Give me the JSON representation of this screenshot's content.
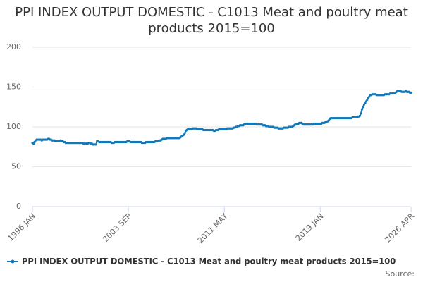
{
  "chart_data": {
    "type": "line",
    "title": "PPI INDEX OUTPUT DOMESTIC - C1013 Meat and poultry meat products 2015=100",
    "source": "Source:",
    "categories": [
      "1996 JAN",
      null,
      null,
      null,
      null,
      null,
      null,
      null,
      null,
      null,
      null,
      null,
      null,
      null,
      null,
      null,
      null,
      null,
      null,
      null,
      null,
      null,
      null,
      null,
      null,
      null,
      null,
      null,
      null,
      null,
      null,
      null,
      null,
      null,
      null,
      null,
      null,
      null,
      null,
      null,
      null,
      null,
      null,
      null,
      null,
      null,
      null,
      null,
      null,
      null,
      null,
      null,
      null,
      null,
      null,
      null,
      null,
      null,
      null,
      null,
      null,
      null,
      null,
      null,
      null,
      null,
      null,
      null,
      null,
      null,
      null,
      null,
      null,
      null,
      null,
      null,
      null,
      null,
      null,
      null,
      null,
      null,
      null,
      null,
      null,
      null,
      null,
      null,
      null,
      null,
      null,
      null,
      "2003 SEP",
      null,
      null,
      null,
      null,
      null,
      null,
      null,
      null,
      null,
      null,
      null,
      null,
      null,
      null,
      null,
      null,
      null,
      null,
      null,
      null,
      null,
      null,
      null,
      null,
      null,
      null,
      null,
      null,
      null,
      null,
      null,
      null,
      null,
      null,
      null,
      null,
      null,
      null,
      null,
      null,
      null,
      null,
      null,
      null,
      null,
      null,
      null,
      null,
      null,
      null,
      null,
      null,
      null,
      null,
      null,
      null,
      null,
      null,
      null,
      null,
      null,
      null,
      null,
      null,
      null,
      null,
      null,
      null,
      null,
      null,
      null,
      null,
      null,
      null,
      null,
      null,
      null,
      null,
      null,
      null,
      null,
      null,
      null,
      null,
      null,
      null,
      null,
      null,
      null,
      null,
      null,
      "2011 MAY",
      null,
      null,
      null,
      null,
      null,
      null,
      null,
      null,
      null,
      null,
      null,
      null,
      null,
      null,
      null,
      null,
      null,
      null,
      null,
      null,
      null,
      null,
      null,
      null,
      null,
      null,
      null,
      null,
      null,
      null,
      null,
      null,
      null,
      null,
      null,
      null,
      null,
      null,
      null,
      null,
      null,
      null,
      null,
      null,
      null,
      null,
      null,
      null,
      null,
      null,
      null,
      null,
      null,
      null,
      null,
      null,
      null,
      null,
      null,
      null,
      null,
      null,
      null,
      null,
      null,
      null,
      null,
      null,
      null,
      null,
      null,
      null,
      null,
      null,
      null,
      null,
      null,
      null,
      null,
      null,
      null,
      null,
      null,
      null,
      null,
      null,
      null,
      null,
      null,
      null,
      null,
      "2019 JAN",
      null,
      null,
      null,
      null,
      null,
      null,
      null,
      null,
      null,
      null,
      null,
      null,
      null,
      null,
      null,
      null,
      null,
      null,
      null,
      null,
      null,
      null,
      null,
      null,
      null,
      null,
      null,
      null,
      null,
      null,
      null,
      null,
      null,
      null,
      null,
      null,
      null,
      null,
      null,
      null,
      null,
      null,
      null,
      null,
      null,
      null,
      null,
      null,
      null,
      null,
      null,
      null,
      null,
      null,
      null,
      null,
      null,
      null,
      null,
      null,
      null,
      null,
      null,
      null,
      null,
      null,
      null,
      null,
      null,
      null,
      null,
      null,
      null,
      null,
      null,
      null,
      null,
      null,
      null,
      null,
      null,
      null,
      null,
      null,
      null,
      null,
      "2026 APR"
    ],
    "series": [
      {
        "name": "PPI INDEX OUTPUT DOMESTIC - C1013 Meat and poultry meat products 2015=100",
        "color": "#1479b8",
        "values": [
          80,
          79,
          81,
          83,
          84,
          84,
          84,
          84,
          84,
          83,
          84,
          84,
          84,
          84,
          84,
          85,
          85,
          84,
          84,
          83,
          83,
          83,
          82,
          82,
          82,
          82,
          82,
          83,
          82,
          82,
          81,
          81,
          80,
          80,
          80,
          80,
          80,
          80,
          80,
          80,
          80,
          80,
          80,
          80,
          80,
          80,
          80,
          80,
          80,
          79,
          79,
          79,
          79,
          79,
          80,
          80,
          79,
          79,
          78,
          78,
          78,
          78,
          82,
          82,
          81,
          81,
          81,
          81,
          81,
          81,
          81,
          81,
          81,
          81,
          81,
          81,
          80,
          80,
          80,
          81,
          81,
          81,
          81,
          81,
          81,
          81,
          81,
          81,
          81,
          81,
          81,
          82,
          82,
          82,
          81,
          81,
          81,
          81,
          81,
          81,
          81,
          81,
          81,
          81,
          81,
          80,
          80,
          80,
          80,
          81,
          81,
          81,
          81,
          81,
          81,
          81,
          81,
          81,
          82,
          82,
          82,
          82,
          83,
          83,
          84,
          85,
          85,
          85,
          85,
          86,
          86,
          86,
          86,
          86,
          86,
          86,
          86,
          86,
          86,
          86,
          86,
          86,
          87,
          88,
          89,
          90,
          92,
          95,
          96,
          97,
          97,
          97,
          97,
          97,
          98,
          98,
          98,
          98,
          97,
          97,
          97,
          97,
          97,
          97,
          96,
          96,
          96,
          96,
          96,
          96,
          96,
          96,
          96,
          96,
          95,
          95,
          96,
          96,
          96,
          97,
          97,
          97,
          97,
          97,
          97,
          97,
          97,
          98,
          98,
          98,
          98,
          98,
          98,
          99,
          99,
          100,
          100,
          101,
          101,
          102,
          102,
          102,
          102,
          103,
          103,
          104,
          104,
          104,
          104,
          104,
          104,
          104,
          104,
          104,
          104,
          103,
          103,
          103,
          103,
          103,
          103,
          102,
          102,
          102,
          101,
          101,
          101,
          100,
          100,
          100,
          100,
          100,
          99,
          99,
          99,
          99,
          98,
          98,
          98,
          98,
          98,
          99,
          99,
          99,
          99,
          99,
          100,
          100,
          100,
          100,
          101,
          102,
          103,
          103,
          104,
          104,
          105,
          105,
          105,
          104,
          103,
          103,
          103,
          103,
          103,
          103,
          103,
          103,
          103,
          103,
          104,
          104,
          104,
          104,
          104,
          104,
          104,
          104,
          105,
          105,
          105,
          106,
          106,
          107,
          108,
          110,
          111,
          111,
          111,
          111,
          111,
          111,
          111,
          111,
          111,
          111,
          111,
          111,
          111,
          111,
          111,
          111,
          111,
          111,
          111,
          111,
          111,
          112,
          112,
          112,
          112,
          112,
          113,
          113,
          114,
          117,
          122,
          125,
          128,
          130,
          132,
          134,
          136,
          138,
          140,
          140,
          141,
          141,
          141,
          141,
          140,
          140,
          140,
          140,
          140,
          140,
          140,
          140,
          141,
          141,
          141,
          141,
          141,
          142,
          142,
          142,
          142,
          142,
          143,
          144,
          145,
          145,
          145,
          145,
          144,
          144,
          144,
          144,
          145,
          144,
          144,
          144,
          143,
          143
        ]
      }
    ],
    "ylim": [
      0,
      200
    ],
    "yticks": [
      0,
      50,
      100,
      150,
      200
    ],
    "grid": true
  }
}
